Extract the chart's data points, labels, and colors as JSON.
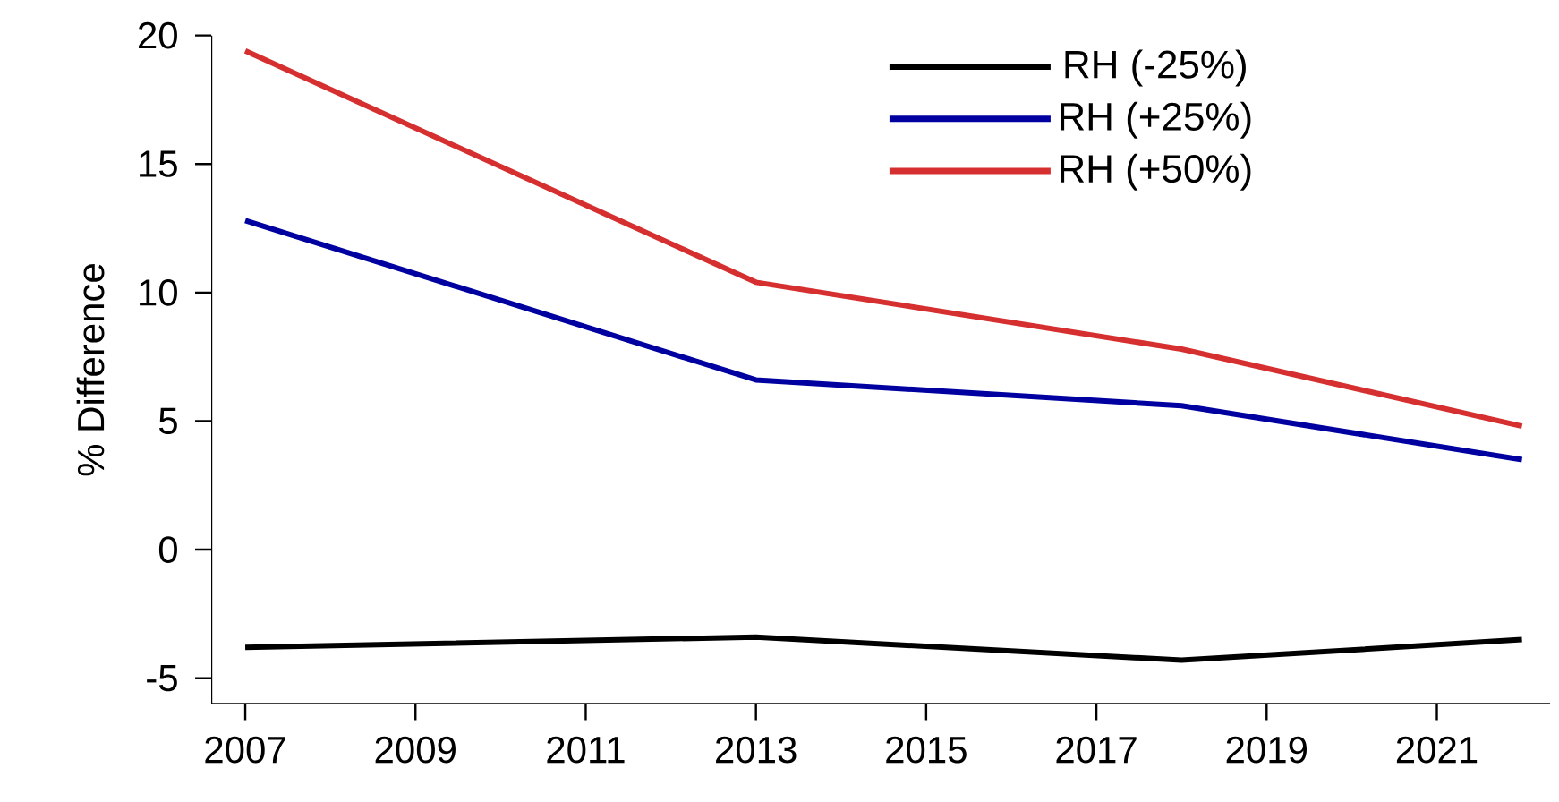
{
  "chart_data": {
    "type": "line",
    "ylabel": "% Difference",
    "x": [
      2007,
      2013,
      2018,
      2022
    ],
    "series": [
      {
        "name": "RH (-25%)",
        "color": "#000000",
        "values": [
          -3.8,
          -3.4,
          -4.3,
          -3.5
        ]
      },
      {
        "name": "RH (+25%)",
        "color": "#0000a0",
        "values": [
          12.8,
          6.6,
          5.6,
          3.5
        ]
      },
      {
        "name": "RH (+50%)",
        "color": "#d62f2f",
        "values": [
          19.4,
          10.4,
          7.8,
          4.8
        ]
      }
    ],
    "xlim": [
      2006.6,
      2022.33
    ],
    "ylim": [
      -6,
      20
    ],
    "xticks": [
      2007,
      2009,
      2011,
      2013,
      2015,
      2017,
      2019,
      2021
    ],
    "yticks": [
      -5,
      0,
      5,
      10,
      15,
      20
    ],
    "legend": "top right",
    "grid": false,
    "line_style": "solid",
    "marker": "none"
  }
}
